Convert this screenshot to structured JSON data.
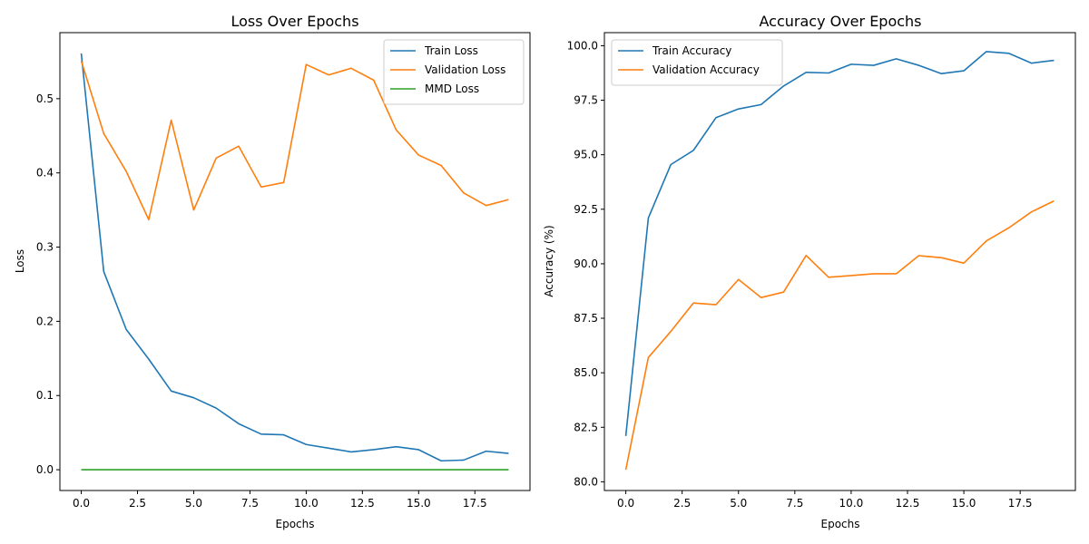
{
  "chart_data": [
    {
      "type": "line",
      "title": "Loss Over Epochs",
      "xlabel": "Epochs",
      "ylabel": "Loss",
      "xlim": [
        -0.95,
        19.95
      ],
      "ylim": [
        -0.028,
        0.589
      ],
      "xticks": [
        0,
        2.5,
        5,
        7.5,
        10,
        12.5,
        15,
        17.5
      ],
      "xtick_labels": [
        "0.0",
        "2.5",
        "5.0",
        "7.5",
        "10.0",
        "12.5",
        "15.0",
        "17.5"
      ],
      "yticks": [
        0,
        0.1,
        0.2,
        0.3,
        0.4,
        0.5
      ],
      "ytick_labels": [
        "0.0",
        "0.1",
        "0.2",
        "0.3",
        "0.4",
        "0.5"
      ],
      "grid": false,
      "legend_position": "top-right",
      "x": [
        0,
        1,
        2,
        3,
        4,
        5,
        6,
        7,
        8,
        9,
        10,
        11,
        12,
        13,
        14,
        15,
        16,
        17,
        18,
        19
      ],
      "series": [
        {
          "name": "Train Loss",
          "color": "#1f77b4",
          "values": [
            0.561,
            0.267,
            0.189,
            0.149,
            0.106,
            0.097,
            0.083,
            0.062,
            0.048,
            0.047,
            0.034,
            0.029,
            0.024,
            0.027,
            0.031,
            0.027,
            0.012,
            0.013,
            0.025,
            0.022
          ]
        },
        {
          "name": "Validation Loss",
          "color": "#ff7f0e",
          "values": [
            0.551,
            0.453,
            0.402,
            0.337,
            0.471,
            0.35,
            0.42,
            0.436,
            0.381,
            0.387,
            0.546,
            0.532,
            0.541,
            0.525,
            0.458,
            0.424,
            0.41,
            0.373,
            0.356,
            0.364
          ]
        },
        {
          "name": "MMD Loss",
          "color": "#2ca02c",
          "values": [
            0,
            0,
            0,
            0,
            0,
            0,
            0,
            0,
            0,
            0,
            0,
            0,
            0,
            0,
            0,
            0,
            0,
            0,
            0,
            0
          ]
        }
      ]
    },
    {
      "type": "line",
      "title": "Accuracy Over Epochs",
      "xlabel": "Epochs",
      "ylabel": "Accuracy (%)",
      "xlim": [
        -0.95,
        19.95
      ],
      "ylim": [
        79.6,
        100.6
      ],
      "xticks": [
        0,
        2.5,
        5,
        7.5,
        10,
        12.5,
        15,
        17.5
      ],
      "xtick_labels": [
        "0.0",
        "2.5",
        "5.0",
        "7.5",
        "10.0",
        "12.5",
        "15.0",
        "17.5"
      ],
      "yticks": [
        80,
        82.5,
        85,
        87.5,
        90,
        92.5,
        95,
        97.5,
        100
      ],
      "ytick_labels": [
        "80.0",
        "82.5",
        "85.0",
        "87.5",
        "90.0",
        "92.5",
        "95.0",
        "97.5",
        "100.0"
      ],
      "grid": false,
      "legend_position": "top-left",
      "x": [
        0,
        1,
        2,
        3,
        4,
        5,
        6,
        7,
        8,
        9,
        10,
        11,
        12,
        13,
        14,
        15,
        16,
        17,
        18,
        19
      ],
      "series": [
        {
          "name": "Train Accuracy",
          "color": "#1f77b4",
          "values": [
            82.1,
            92.1,
            94.55,
            95.2,
            96.7,
            97.1,
            97.3,
            98.15,
            98.78,
            98.75,
            99.15,
            99.1,
            99.4,
            99.1,
            98.72,
            98.85,
            99.73,
            99.65,
            99.2,
            99.33
          ]
        },
        {
          "name": "Validation Accuracy",
          "color": "#ff7f0e",
          "values": [
            80.55,
            85.7,
            86.9,
            88.2,
            88.12,
            89.28,
            88.45,
            88.7,
            90.38,
            89.38,
            89.46,
            89.54,
            89.54,
            90.37,
            90.28,
            90.03,
            91.05,
            91.65,
            92.38,
            92.88
          ]
        }
      ]
    }
  ]
}
